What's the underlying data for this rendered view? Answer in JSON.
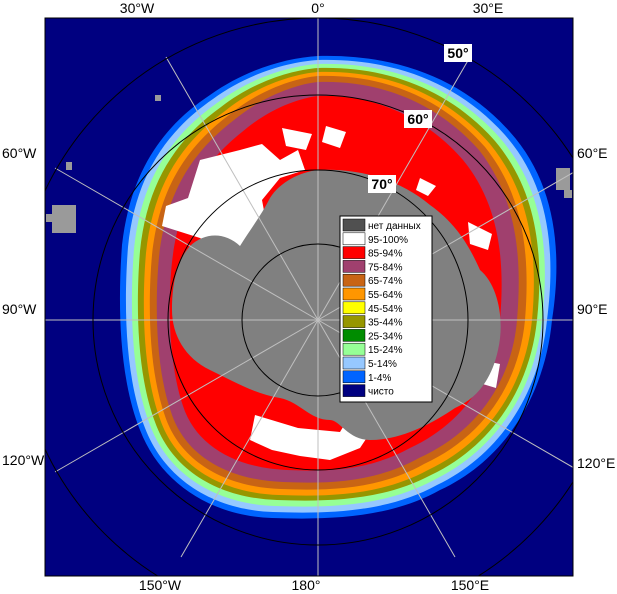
{
  "map": {
    "longitude_labels": {
      "top_left": "30°W",
      "top_center": "0°",
      "top_right": "30°E",
      "left_upper": "60°W",
      "right_upper": "60°E",
      "left_middle": "90°W",
      "right_middle": "90°E",
      "left_lower": "120°W",
      "right_lower": "120°E",
      "bottom_left": "150°W",
      "bottom_center": "180°",
      "bottom_right": "150°E"
    },
    "latitude_labels": {
      "lat50": "50°",
      "lat60": "60°",
      "lat70": "70°"
    },
    "colors": {
      "ocean": "#000080",
      "land": "#808080",
      "land_other": "#9a9a9a",
      "no_data": "#505050",
      "grid": "#bfbfbf",
      "circle": "#000000"
    }
  },
  "legend": {
    "items": [
      {
        "label": "нет данных",
        "color": "#505050"
      },
      {
        "label": "95-100%",
        "color": "#ffffff"
      },
      {
        "label": "85-94%",
        "color": "#ff0000"
      },
      {
        "label": "75-84%",
        "color": "#a0406e"
      },
      {
        "label": "65-74%",
        "color": "#c86414"
      },
      {
        "label": "55-64%",
        "color": "#ff9600"
      },
      {
        "label": "45-54%",
        "color": "#ffff00"
      },
      {
        "label": "35-44%",
        "color": "#969600"
      },
      {
        "label": "25-34%",
        "color": "#008c00"
      },
      {
        "label": "15-24%",
        "color": "#96ff96"
      },
      {
        "label": "5-14%",
        "color": "#96c8ff"
      },
      {
        "label": "1-4%",
        "color": "#0064ff"
      },
      {
        "label": "чисто",
        "color": "#000080"
      }
    ]
  }
}
